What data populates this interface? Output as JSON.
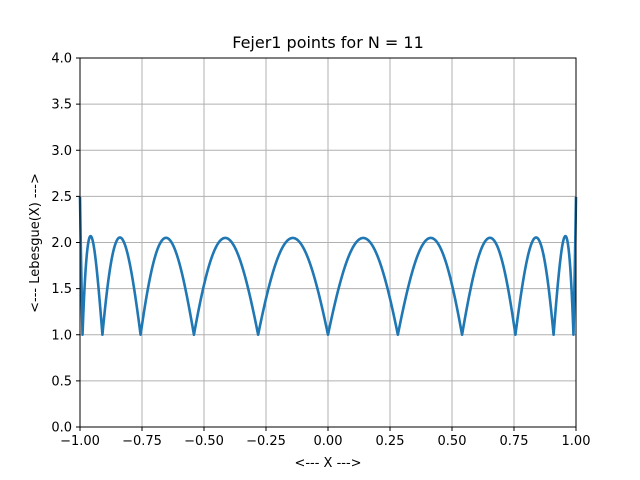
{
  "chart_data": {
    "type": "line",
    "title": "Fejer1 points for N = 11",
    "xlabel": "<--- X --->",
    "ylabel": "<--- Lebesgue(X) --->",
    "xlim": [
      -1.0,
      1.0
    ],
    "ylim": [
      0.0,
      4.0
    ],
    "grid": true,
    "x_ticks": [
      -1.0,
      -0.75,
      -0.5,
      -0.25,
      0.0,
      0.25,
      0.5,
      0.75,
      1.0
    ],
    "x_tick_labels": [
      "−1.00",
      "−0.75",
      "−0.50",
      "−0.25",
      "0.00",
      "0.25",
      "0.50",
      "0.75",
      "1.00"
    ],
    "y_ticks": [
      0.0,
      0.5,
      1.0,
      1.5,
      2.0,
      2.5,
      3.0,
      3.5,
      4.0
    ],
    "y_tick_labels": [
      "0.0",
      "0.5",
      "1.0",
      "1.5",
      "2.0",
      "2.5",
      "3.0",
      "3.5",
      "4.0"
    ],
    "interpolation_nodes": [
      -0.9898,
      -0.9096,
      -0.7557,
      -0.5406,
      -0.2817,
      0.0,
      0.2817,
      0.5406,
      0.7557,
      0.9096,
      0.9898
    ],
    "series": [
      {
        "color": "#1f77b4",
        "x": [
          -1.0,
          -0.9898,
          -0.975,
          -0.95,
          -0.9096,
          -0.87,
          -0.83,
          -0.79,
          -0.7557,
          -0.71,
          -0.65,
          -0.59,
          -0.5406,
          -0.48,
          -0.41,
          -0.34,
          -0.2817,
          -0.21,
          -0.14,
          -0.07,
          0.0,
          0.07,
          0.14,
          0.21,
          0.2817,
          0.34,
          0.41,
          0.48,
          0.5406,
          0.59,
          0.65,
          0.71,
          0.7557,
          0.79,
          0.83,
          0.87,
          0.9096,
          0.95,
          0.975,
          0.9898,
          1.0
        ],
        "y": [
          2.5,
          1.0,
          1.75,
          2.06,
          1.0,
          1.85,
          2.05,
          1.7,
          1.0,
          1.8,
          2.05,
          1.65,
          1.0,
          1.75,
          2.05,
          1.7,
          1.0,
          1.8,
          2.05,
          1.7,
          1.0,
          1.7,
          2.05,
          1.8,
          1.0,
          1.7,
          2.05,
          1.75,
          1.0,
          1.65,
          2.05,
          1.8,
          1.0,
          1.7,
          2.05,
          1.85,
          1.0,
          2.06,
          1.75,
          1.0,
          2.5
        ]
      }
    ]
  }
}
